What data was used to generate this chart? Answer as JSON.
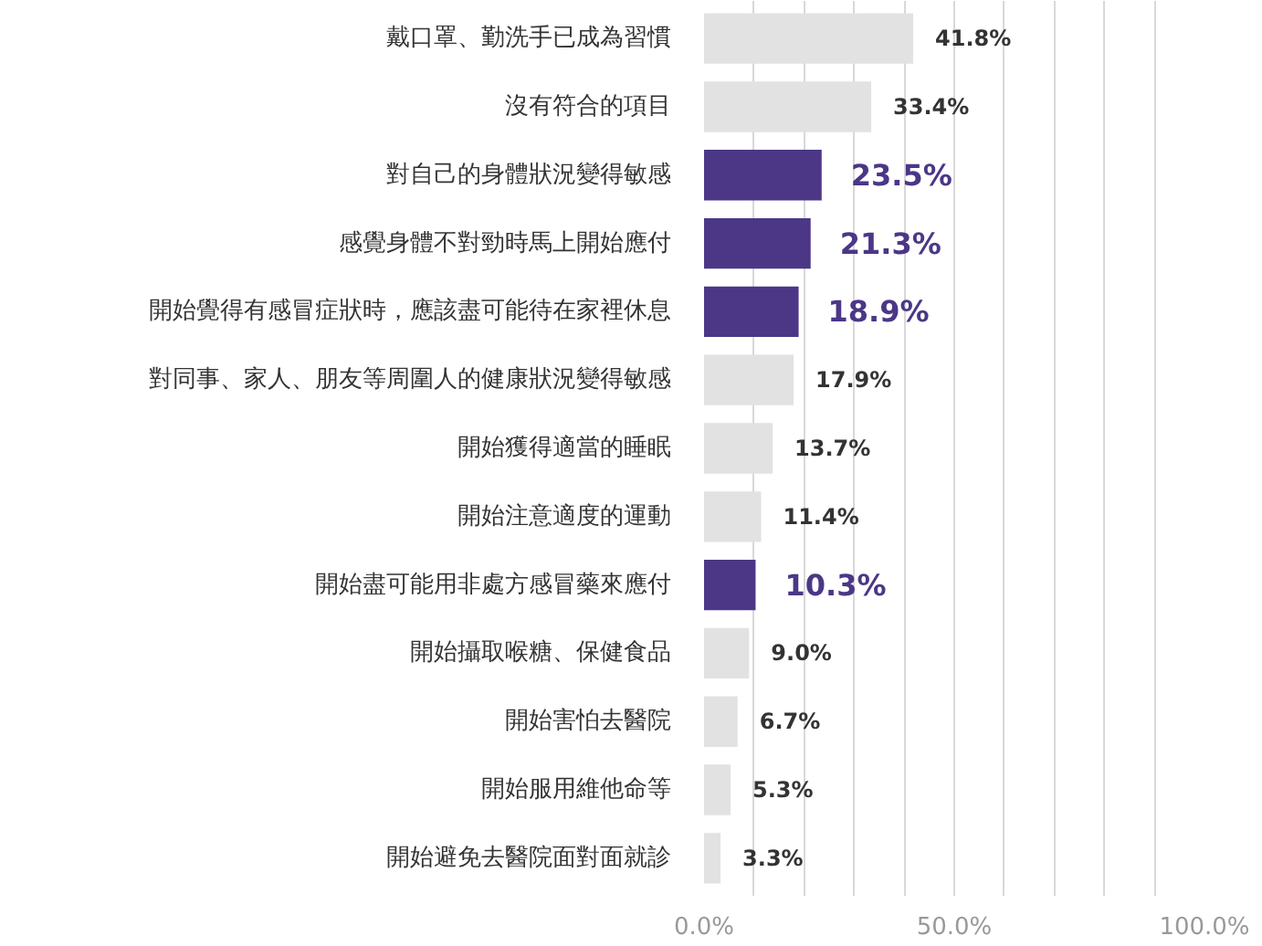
{
  "chart_data": {
    "type": "bar",
    "orientation": "horizontal",
    "categories": [
      "戴口罩、勤洗手已成為習慣",
      "沒有符合的項目",
      "對自己的身體狀況變得敏感",
      "感覺身體不對勁時馬上開始應付",
      "開始覺得有感冒症狀時，應該盡可能待在家裡休息",
      "對同事、家人、朋友等周圍人的健康狀況變得敏感",
      "開始獲得適當的睡眠",
      "開始注意適度的運動",
      "開始盡可能用非處方感冒藥來應付",
      "開始攝取喉糖、保健食品",
      "開始害怕去醫院",
      "開始服用維他命等",
      "開始避免去醫院面對面就診"
    ],
    "values": [
      41.8,
      33.4,
      23.5,
      21.3,
      18.9,
      17.9,
      13.7,
      11.4,
      10.3,
      9.0,
      6.7,
      5.3,
      3.3
    ],
    "colors": [
      "#e2e2e2",
      "#e2e2e2",
      "#4b3786",
      "#4b3786",
      "#4b3786",
      "#e2e2e2",
      "#e2e2e2",
      "#e2e2e2",
      "#4b3786",
      "#e2e2e2",
      "#e2e2e2",
      "#e2e2e2",
      "#e2e2e2"
    ],
    "value_labels": [
      "41.8%",
      "33.4%",
      "23.5%",
      "21.3%",
      "18.9%",
      "17.9%",
      "13.7%",
      "11.4%",
      "10.3%",
      "9.0%",
      "6.7%",
      "5.3%",
      "3.3%"
    ],
    "xlim": [
      0,
      100
    ],
    "xticks": [
      {
        "value": 0,
        "label": "0.0%"
      },
      {
        "value": 10,
        "label": null
      },
      {
        "value": 20,
        "label": null
      },
      {
        "value": 30,
        "label": null
      },
      {
        "value": 40,
        "label": null
      },
      {
        "value": 50,
        "label": "50.0%"
      },
      {
        "value": 60,
        "label": null
      },
      {
        "value": 70,
        "label": null
      },
      {
        "value": 80,
        "label": null
      },
      {
        "value": 90,
        "label": null
      },
      {
        "value": 100,
        "label": "100.0%"
      }
    ],
    "grid": "x"
  }
}
